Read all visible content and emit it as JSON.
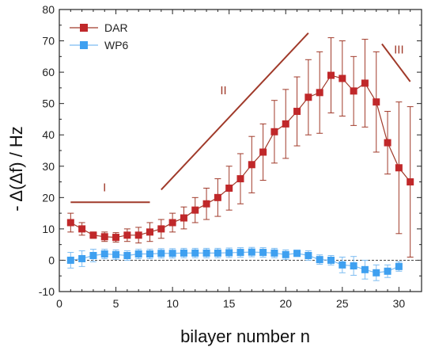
{
  "chart_data": {
    "type": "scatter",
    "xlabel": "bilayer number n",
    "ylabel": "- Δ(Δf) / Hz",
    "xlim": [
      0,
      32
    ],
    "ylim": [
      -10,
      80
    ],
    "xticks": [
      0,
      5,
      10,
      15,
      20,
      25,
      30
    ],
    "yticks": [
      -10,
      0,
      10,
      20,
      30,
      40,
      50,
      60,
      70,
      80
    ],
    "grid": false,
    "legend_position": "top-left",
    "reference_line": {
      "y": 0,
      "style": "dashed"
    },
    "series": [
      {
        "name": "DAR",
        "color": "#c0282a",
        "line_color": "#a03a2a",
        "marker": "square",
        "x": [
          1,
          2,
          3,
          4,
          5,
          6,
          7,
          8,
          9,
          10,
          11,
          12,
          13,
          14,
          15,
          16,
          17,
          18,
          19,
          20,
          21,
          22,
          23,
          24,
          25,
          26,
          27,
          28,
          29,
          30,
          31
        ],
        "y": [
          12,
          10,
          8,
          7.5,
          7.3,
          8,
          8,
          9,
          10,
          12,
          13.5,
          16,
          18,
          20,
          23,
          26,
          30.5,
          34.5,
          41,
          43.5,
          47.5,
          52,
          53.5,
          59,
          58,
          54,
          56.5,
          50.5,
          37.5,
          29.5,
          25
        ],
        "error": [
          3,
          2,
          1,
          1.5,
          1.5,
          2,
          2.5,
          3,
          3,
          3,
          3.5,
          4,
          5,
          6,
          7,
          8,
          9,
          9,
          10,
          11,
          11,
          12,
          13,
          12,
          12,
          11,
          14,
          16,
          10,
          21,
          24
        ]
      },
      {
        "name": "WP6",
        "color": "#3fa0f0",
        "line_color": "#7cbcf2",
        "marker": "square",
        "x": [
          1,
          2,
          3,
          4,
          5,
          6,
          7,
          8,
          9,
          10,
          11,
          12,
          13,
          14,
          15,
          16,
          17,
          18,
          19,
          20,
          21,
          22,
          23,
          24,
          25,
          26,
          27,
          28,
          29,
          30
        ],
        "y": [
          0,
          0.5,
          1.5,
          2,
          1.8,
          1.5,
          2,
          2,
          2.2,
          2.2,
          2.3,
          2.3,
          2.3,
          2.3,
          2.4,
          2.5,
          2.6,
          2.5,
          2.3,
          1.8,
          2.2,
          1.5,
          0.2,
          0,
          -1.5,
          -1.8,
          -3,
          -4,
          -3.5,
          -2
        ],
        "error": [
          2.5,
          2.5,
          2,
          1.5,
          1.5,
          1.5,
          1.5,
          1.5,
          1.5,
          1.5,
          1.5,
          1.5,
          1.5,
          1.5,
          1.5,
          1.5,
          1.5,
          1.5,
          1.5,
          1.5,
          1,
          1.5,
          1.5,
          1.5,
          2.5,
          3,
          3,
          2.5,
          2,
          1.5
        ]
      }
    ],
    "annotations": [
      {
        "text": "I",
        "color": "#a03a2a",
        "label_at": [
          4.0,
          22.0
        ],
        "line": [
          [
            1,
            18.5
          ],
          [
            8,
            18.5
          ]
        ]
      },
      {
        "text": "II",
        "color": "#a03a2a",
        "label_at": [
          14.5,
          53.0
        ],
        "line": [
          [
            9,
            22.5
          ],
          [
            22,
            72.5
          ]
        ]
      },
      {
        "text": "III",
        "color": "#a03a2a",
        "label_at": [
          30.0,
          66.0
        ],
        "line": [
          [
            28.5,
            69
          ],
          [
            31,
            57
          ]
        ]
      }
    ]
  }
}
